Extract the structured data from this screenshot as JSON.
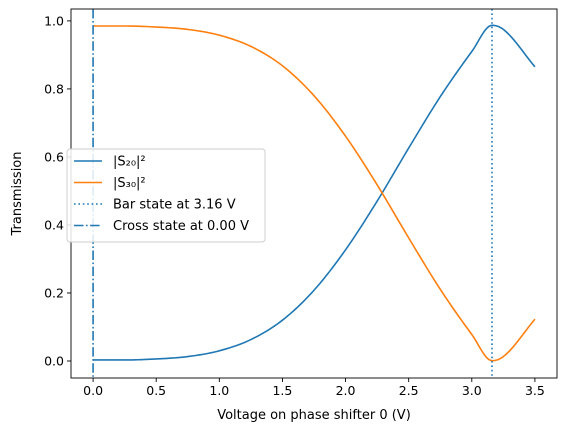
{
  "chart_data": {
    "type": "line",
    "title": "",
    "xlabel": "Voltage on phase shifter 0 (V)",
    "ylabel": "Transmission",
    "xlim": [
      -0.175,
      3.675
    ],
    "ylim": [
      -0.05,
      1.035
    ],
    "x_ticks": [
      0.0,
      0.5,
      1.0,
      1.5,
      2.0,
      2.5,
      3.0,
      3.5
    ],
    "x_tick_labels": [
      "0.0",
      "0.5",
      "1.0",
      "1.5",
      "2.0",
      "2.5",
      "3.0",
      "3.5"
    ],
    "y_ticks": [
      0.0,
      0.2,
      0.4,
      0.6,
      0.8,
      1.0
    ],
    "y_tick_labels": [
      "0.0",
      "0.2",
      "0.4",
      "0.6",
      "0.8",
      "1.0"
    ],
    "grid": false,
    "legend_position": "center-left",
    "x": [
      0.0,
      0.25,
      0.5,
      0.75,
      1.0,
      1.25,
      1.5,
      1.75,
      2.0,
      2.25,
      2.5,
      2.75,
      3.0,
      3.16,
      3.25,
      3.5
    ],
    "series": [
      {
        "name": "|S₂₀|²",
        "color": "#1f77b4",
        "values": [
          0.003,
          0.003,
          0.006,
          0.013,
          0.03,
          0.063,
          0.12,
          0.208,
          0.327,
          0.47,
          0.626,
          0.777,
          0.91,
          0.987,
          0.975,
          0.865
        ]
      },
      {
        "name": "|S₃₀|²",
        "color": "#ff7f0e",
        "values": [
          0.985,
          0.985,
          0.982,
          0.975,
          0.958,
          0.925,
          0.868,
          0.78,
          0.661,
          0.518,
          0.362,
          0.211,
          0.078,
          0.001,
          0.013,
          0.123
        ]
      }
    ],
    "vlines": [
      {
        "name": "Bar state at 3.16 V",
        "x": 3.16,
        "style": "dotted",
        "color": "#1f77b4"
      },
      {
        "name": "Cross state at 0.00 V",
        "x": 0.0,
        "style": "dashdot",
        "color": "#1f77b4"
      }
    ]
  }
}
